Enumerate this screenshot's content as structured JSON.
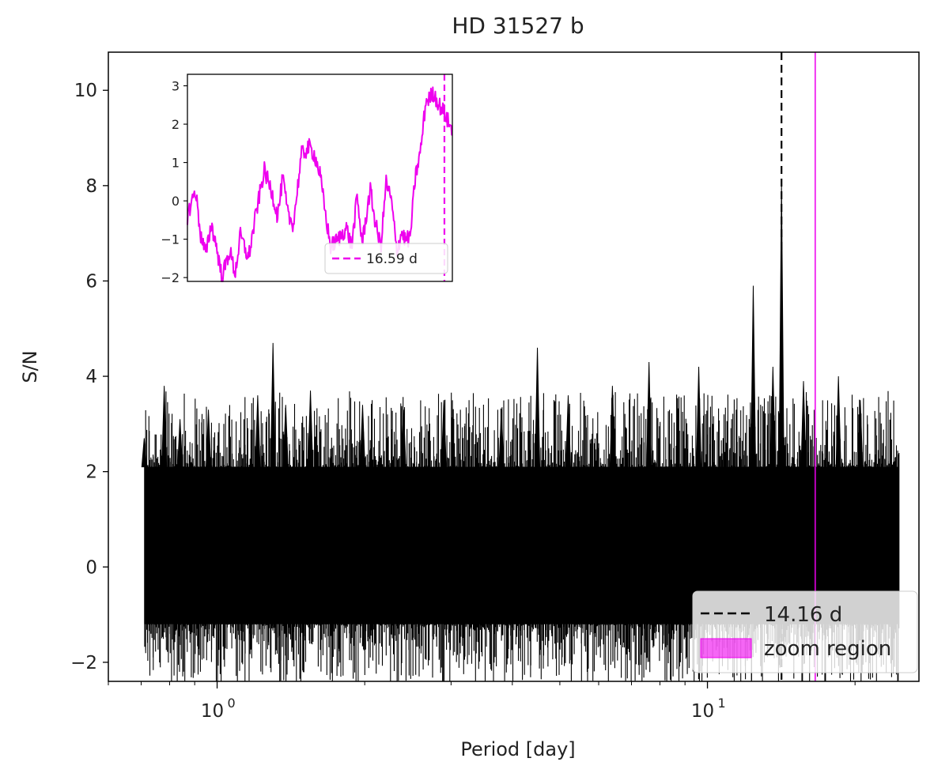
{
  "chart_data": {
    "type": "line",
    "title": "HD 31527 b",
    "xlabel": "Period [day]",
    "ylabel": "S/N",
    "xscale": "log",
    "xlim": [
      0.6,
      27
    ],
    "ylim": [
      -2.4,
      10.8
    ],
    "x_ticks": [
      {
        "value": 1,
        "base": "10",
        "exp": "0"
      },
      {
        "value": 10,
        "base": "10",
        "exp": "1"
      }
    ],
    "y_ticks": [
      -2,
      0,
      2,
      4,
      6,
      8,
      10
    ],
    "series": [
      {
        "color": "#000000",
        "x_range": [
          0.71,
          24.6
        ],
        "baseline_band": [
          -1.2,
          2.1
        ],
        "peaks": [
          {
            "x": 0.71,
            "y": 2.7
          },
          {
            "x": 0.78,
            "y": 3.8
          },
          {
            "x": 0.84,
            "y": 3.1
          },
          {
            "x": 0.96,
            "y": 3.3
          },
          {
            "x": 1.21,
            "y": 3.6
          },
          {
            "x": 1.3,
            "y": 4.7
          },
          {
            "x": 1.38,
            "y": 3.4
          },
          {
            "x": 1.55,
            "y": 3.7
          },
          {
            "x": 1.98,
            "y": 3.4
          },
          {
            "x": 2.4,
            "y": 3.3
          },
          {
            "x": 2.9,
            "y": 3.5
          },
          {
            "x": 3.8,
            "y": 3.3
          },
          {
            "x": 4.5,
            "y": 4.6
          },
          {
            "x": 5.2,
            "y": 3.6
          },
          {
            "x": 6.4,
            "y": 3.8
          },
          {
            "x": 7.6,
            "y": 4.3
          },
          {
            "x": 9.6,
            "y": 4.2
          },
          {
            "x": 12.4,
            "y": 5.9
          },
          {
            "x": 13.6,
            "y": 4.2
          },
          {
            "x": 14.16,
            "y": 8.1
          },
          {
            "x": 15.7,
            "y": 3.9
          },
          {
            "x": 18.5,
            "y": 4.0
          },
          {
            "x": 20.5,
            "y": 3.5
          }
        ]
      }
    ],
    "vlines": [
      {
        "x": 14.16,
        "label": "14.16 d",
        "style": "dashed",
        "color": "#000000"
      }
    ],
    "zoom_region": {
      "x": 16.59,
      "label": "zoom region",
      "color": "#ee00ee"
    },
    "legend": {
      "position": "lower right"
    },
    "inset": {
      "type": "line",
      "color": "#ee00ee",
      "ylim": [
        -2.1,
        3.3
      ],
      "y_ticks": [
        -2,
        -1,
        0,
        1,
        2,
        3
      ],
      "vline": {
        "label": "16.59 d",
        "style": "dashed",
        "color": "#ee00ee"
      },
      "profile": [
        [
          0.0,
          -0.4
        ],
        [
          0.03,
          0.3
        ],
        [
          0.05,
          -0.9
        ],
        [
          0.07,
          -1.4
        ],
        [
          0.09,
          -0.6
        ],
        [
          0.11,
          -1.2
        ],
        [
          0.13,
          -2.0
        ],
        [
          0.16,
          -1.3
        ],
        [
          0.18,
          -1.9
        ],
        [
          0.2,
          -0.9
        ],
        [
          0.23,
          -1.5
        ],
        [
          0.26,
          -0.3
        ],
        [
          0.29,
          0.8
        ],
        [
          0.32,
          0.2
        ],
        [
          0.34,
          -0.4
        ],
        [
          0.36,
          0.6
        ],
        [
          0.38,
          -0.4
        ],
        [
          0.4,
          -0.6
        ],
        [
          0.43,
          1.2
        ],
        [
          0.46,
          1.4
        ],
        [
          0.48,
          1.2
        ],
        [
          0.5,
          0.7
        ],
        [
          0.52,
          -0.3
        ],
        [
          0.54,
          -1.2
        ],
        [
          0.57,
          -1.0
        ],
        [
          0.6,
          -0.7
        ],
        [
          0.62,
          -1.2
        ],
        [
          0.64,
          0.1
        ],
        [
          0.66,
          -1.1
        ],
        [
          0.69,
          0.3
        ],
        [
          0.71,
          -0.6
        ],
        [
          0.73,
          -1.2
        ],
        [
          0.75,
          0.5
        ],
        [
          0.77,
          0.0
        ],
        [
          0.79,
          -1.3
        ],
        [
          0.81,
          -0.8
        ],
        [
          0.82,
          -1.0
        ],
        [
          0.84,
          -1.0
        ],
        [
          0.86,
          0.6
        ],
        [
          0.88,
          1.3
        ],
        [
          0.9,
          2.6
        ],
        [
          0.93,
          2.8
        ],
        [
          0.95,
          2.5
        ],
        [
          0.97,
          2.3
        ],
        [
          1.0,
          1.8
        ]
      ]
    }
  }
}
